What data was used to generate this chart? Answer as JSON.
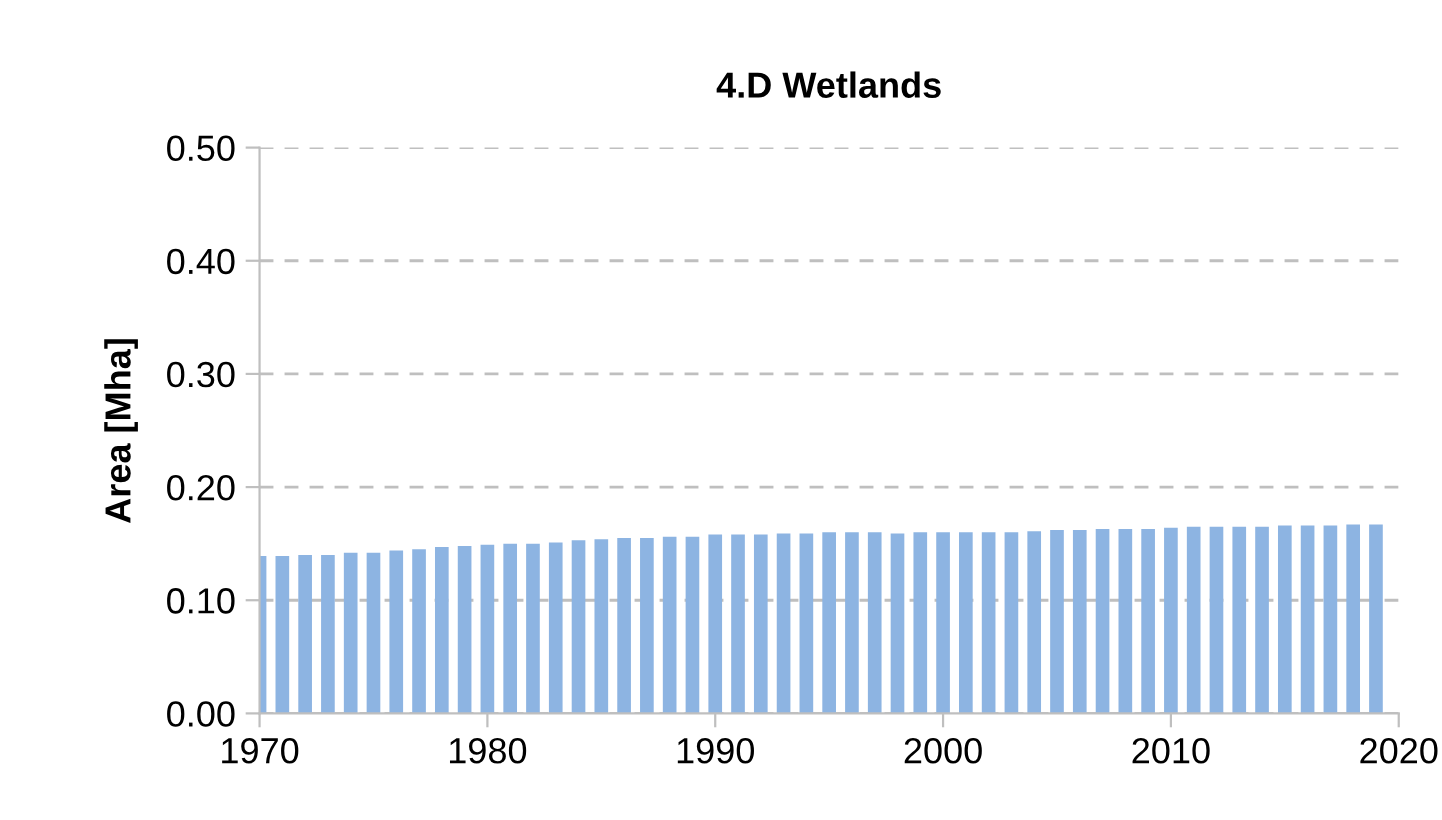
{
  "chart_data": {
    "type": "bar",
    "title": "4.D Wetlands",
    "ylabel": "Area [Mha]",
    "x": [
      1970,
      1971,
      1972,
      1973,
      1974,
      1975,
      1976,
      1977,
      1978,
      1979,
      1980,
      1981,
      1982,
      1983,
      1984,
      1985,
      1986,
      1987,
      1988,
      1989,
      1990,
      1991,
      1992,
      1993,
      1994,
      1995,
      1996,
      1997,
      1998,
      1999,
      2000,
      2001,
      2002,
      2003,
      2004,
      2005,
      2006,
      2007,
      2008,
      2009,
      2010,
      2011,
      2012,
      2013,
      2014,
      2015,
      2016,
      2017,
      2018,
      2019
    ],
    "values": [
      0.139,
      0.139,
      0.14,
      0.14,
      0.142,
      0.142,
      0.144,
      0.145,
      0.147,
      0.148,
      0.149,
      0.15,
      0.15,
      0.151,
      0.153,
      0.154,
      0.155,
      0.155,
      0.156,
      0.156,
      0.158,
      0.158,
      0.158,
      0.159,
      0.159,
      0.16,
      0.16,
      0.16,
      0.159,
      0.16,
      0.16,
      0.16,
      0.16,
      0.16,
      0.161,
      0.162,
      0.162,
      0.163,
      0.163,
      0.163,
      0.164,
      0.165,
      0.165,
      0.165,
      0.165,
      0.166,
      0.166,
      0.166,
      0.167,
      0.167
    ],
    "color": "#8db4e2",
    "xlim": [
      1970,
      2020
    ],
    "xticks": [
      1970,
      1980,
      1990,
      2000,
      2010,
      2020
    ],
    "ylim": [
      0,
      0.5
    ],
    "yticks": [
      {
        "value": 0,
        "label": "0.00"
      },
      {
        "value": 0.1,
        "label": "0.10"
      },
      {
        "value": 0.2,
        "label": "0.20"
      },
      {
        "value": 0.3,
        "label": "0.30"
      },
      {
        "value": 0.4,
        "label": "0.40"
      },
      {
        "value": 0.5,
        "label": "0.50"
      }
    ],
    "grid": "y"
  }
}
